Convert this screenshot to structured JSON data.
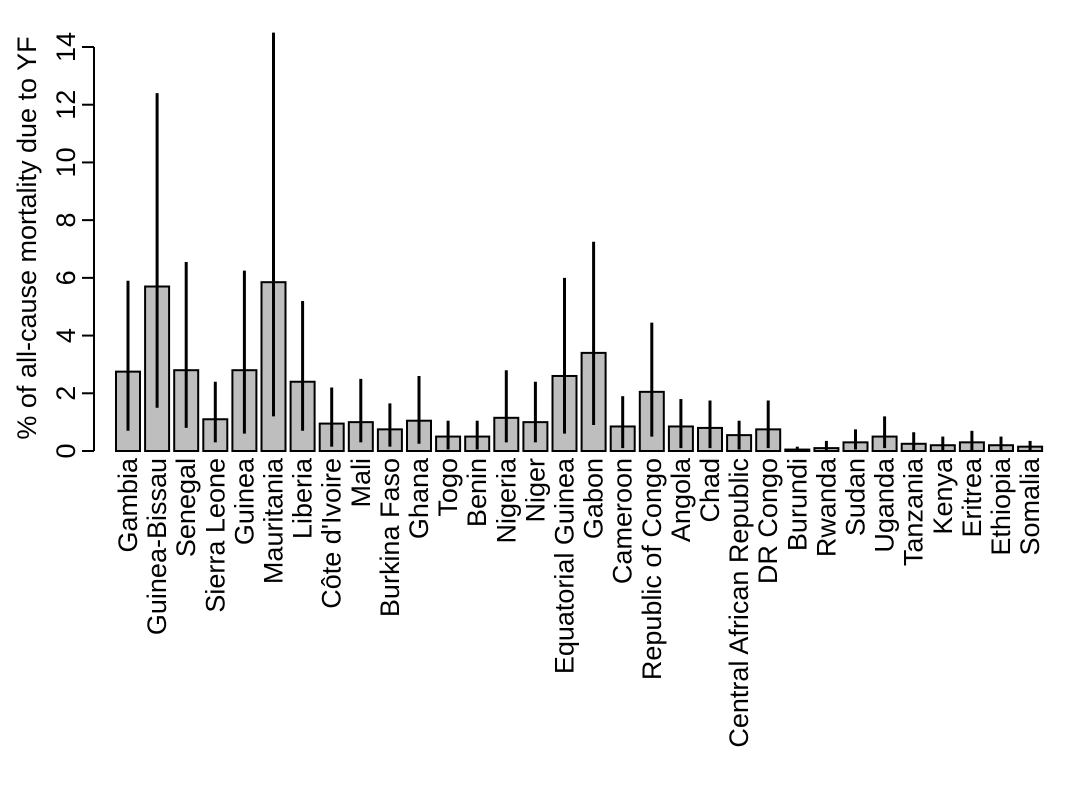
{
  "chart_data": {
    "type": "bar",
    "title": "",
    "xlabel": "",
    "ylabel": "% of all-cause mortality due to YF",
    "ylim": [
      0,
      14
    ],
    "yticks": [
      0,
      2,
      4,
      6,
      8,
      10,
      12,
      14
    ],
    "grid": false,
    "bar_color": "#bebebe",
    "categories": [
      "Gambia",
      "Guinea-Bissau",
      "Senegal",
      "Sierra Leone",
      "Guinea",
      "Mauritania",
      "Liberia",
      "Côte d'Ivoire",
      "Mali",
      "Burkina Faso",
      "Ghana",
      "Togo",
      "Benin",
      "Nigeria",
      "Niger",
      "Equatorial Guinea",
      "Gabon",
      "Cameroon",
      "Republic of Congo",
      "Angola",
      "Chad",
      "Central African Republic",
      "DR Congo",
      "Burundi",
      "Rwanda",
      "Sudan",
      "Uganda",
      "Tanzania",
      "Kenya",
      "Eritrea",
      "Ethiopia",
      "Somalia"
    ],
    "values": [
      2.75,
      5.7,
      2.8,
      1.1,
      2.8,
      5.85,
      2.4,
      0.95,
      1.0,
      0.75,
      1.05,
      0.5,
      0.5,
      1.15,
      1.0,
      2.6,
      3.4,
      0.85,
      2.05,
      0.85,
      0.8,
      0.55,
      0.75,
      0.05,
      0.1,
      0.3,
      0.5,
      0.25,
      0.2,
      0.3,
      0.2,
      0.15
    ],
    "error_low": [
      0.7,
      1.5,
      0.8,
      0.3,
      0.6,
      1.2,
      0.7,
      0.15,
      0.3,
      0.15,
      0.25,
      0.05,
      0.05,
      0.3,
      0.3,
      0.6,
      0.9,
      0.1,
      0.5,
      0.1,
      0.1,
      0.05,
      0.1,
      0.0,
      0.0,
      0.05,
      0.1,
      0.0,
      0.0,
      0.0,
      0.0,
      0.0
    ],
    "error_high": [
      5.9,
      12.4,
      6.55,
      2.4,
      6.25,
      14.5,
      5.2,
      2.2,
      2.5,
      1.65,
      2.6,
      1.05,
      1.05,
      2.8,
      2.4,
      6.0,
      7.25,
      1.9,
      4.45,
      1.8,
      1.75,
      1.05,
      1.75,
      0.15,
      0.35,
      0.75,
      1.2,
      0.65,
      0.5,
      0.7,
      0.5,
      0.35
    ]
  }
}
